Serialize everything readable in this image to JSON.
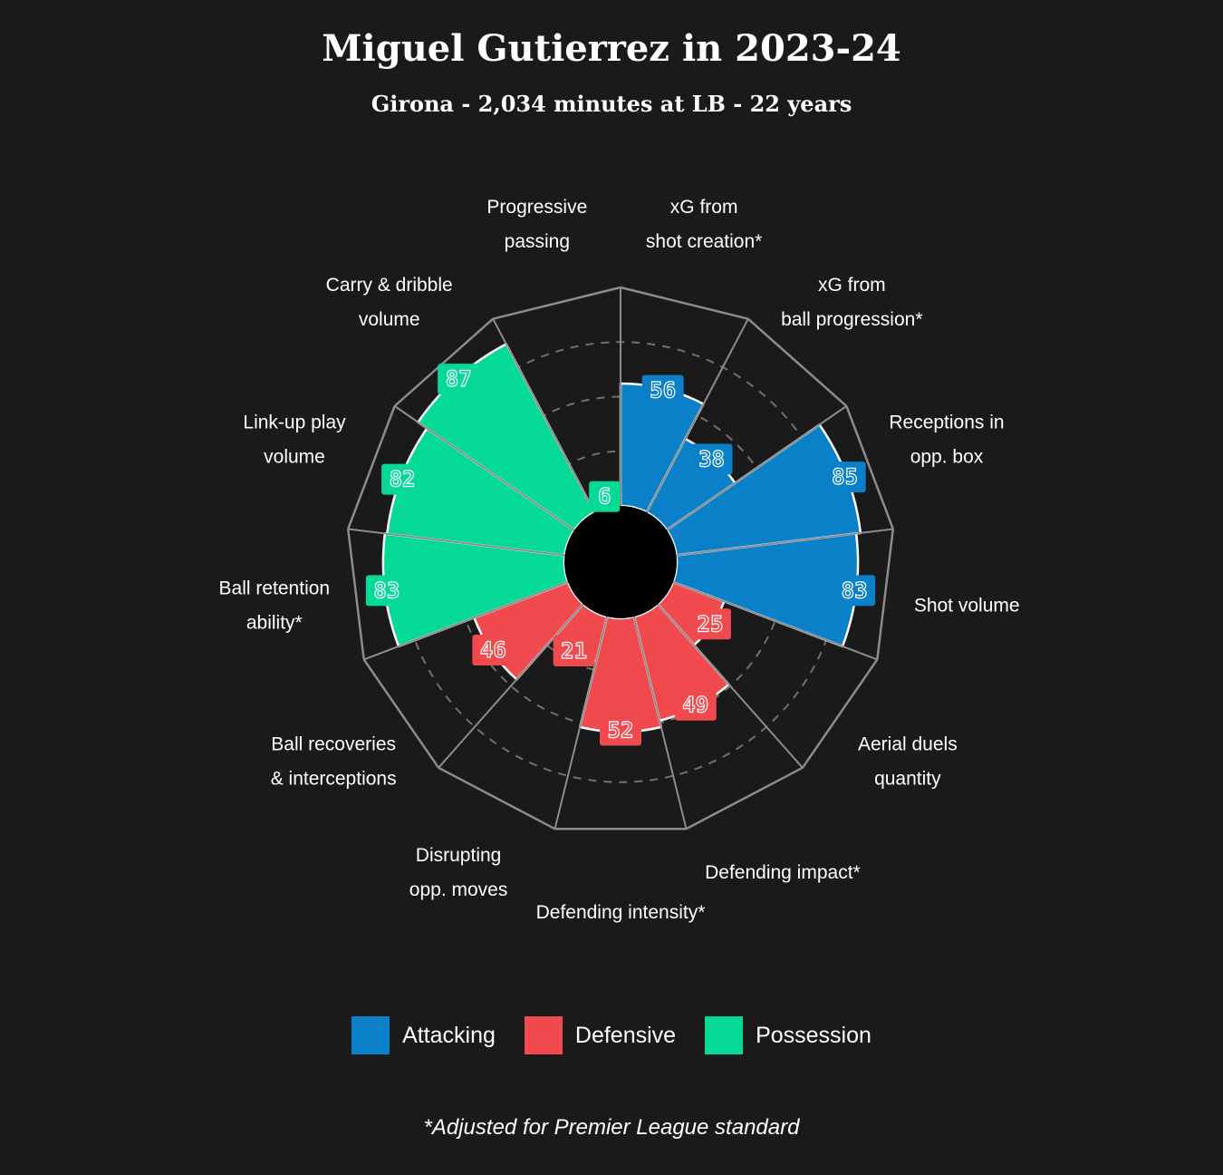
{
  "title": "Miguel Gutierrez in 2023-24",
  "subtitle": "Girona - 2,034 minutes at LB - 22 years",
  "footnote": "*Adjusted for Premier League standard",
  "colors": {
    "background": "#1a1a1a",
    "attacking": "#0a80c9",
    "defensive": "#f14a4e",
    "possession": "#05d996",
    "grid": "#8c8c8c"
  },
  "legend": [
    {
      "label": "Attacking",
      "group": "attacking"
    },
    {
      "label": "Defensive",
      "group": "defensive"
    },
    {
      "label": "Possession",
      "group": "possession"
    }
  ],
  "chart_data": {
    "type": "polar-bar",
    "rlim": [
      0,
      100
    ],
    "ring_values": [
      25,
      50,
      75
    ],
    "categories": [
      {
        "label": [
          "xG from",
          "shot creation*"
        ],
        "value": 56,
        "group": "attacking"
      },
      {
        "label": [
          "xG from",
          "ball progression*"
        ],
        "value": 38,
        "group": "attacking"
      },
      {
        "label": [
          "Receptions in",
          "opp. box"
        ],
        "value": 85,
        "group": "attacking"
      },
      {
        "label": [
          "Shot volume"
        ],
        "value": 83,
        "group": "attacking"
      },
      {
        "label": [
          "Aerial duels",
          "quantity"
        ],
        "value": 25,
        "group": "defensive"
      },
      {
        "label": [
          "Defending impact*"
        ],
        "value": 49,
        "group": "defensive"
      },
      {
        "label": [
          "Defending intensity*"
        ],
        "value": 52,
        "group": "defensive"
      },
      {
        "label": [
          "Disrupting",
          "opp. moves"
        ],
        "value": 21,
        "group": "defensive"
      },
      {
        "label": [
          "Ball recoveries",
          "& interceptions"
        ],
        "value": 46,
        "group": "defensive"
      },
      {
        "label": [
          "Ball retention",
          "ability*"
        ],
        "value": 83,
        "group": "possession"
      },
      {
        "label": [
          "Link-up play",
          "volume"
        ],
        "value": 82,
        "group": "possession"
      },
      {
        "label": [
          "Carry & dribble",
          "volume"
        ],
        "value": 87,
        "group": "possession"
      },
      {
        "label": [
          "Progressive",
          "passing"
        ],
        "value": 6,
        "group": "possession"
      }
    ]
  }
}
